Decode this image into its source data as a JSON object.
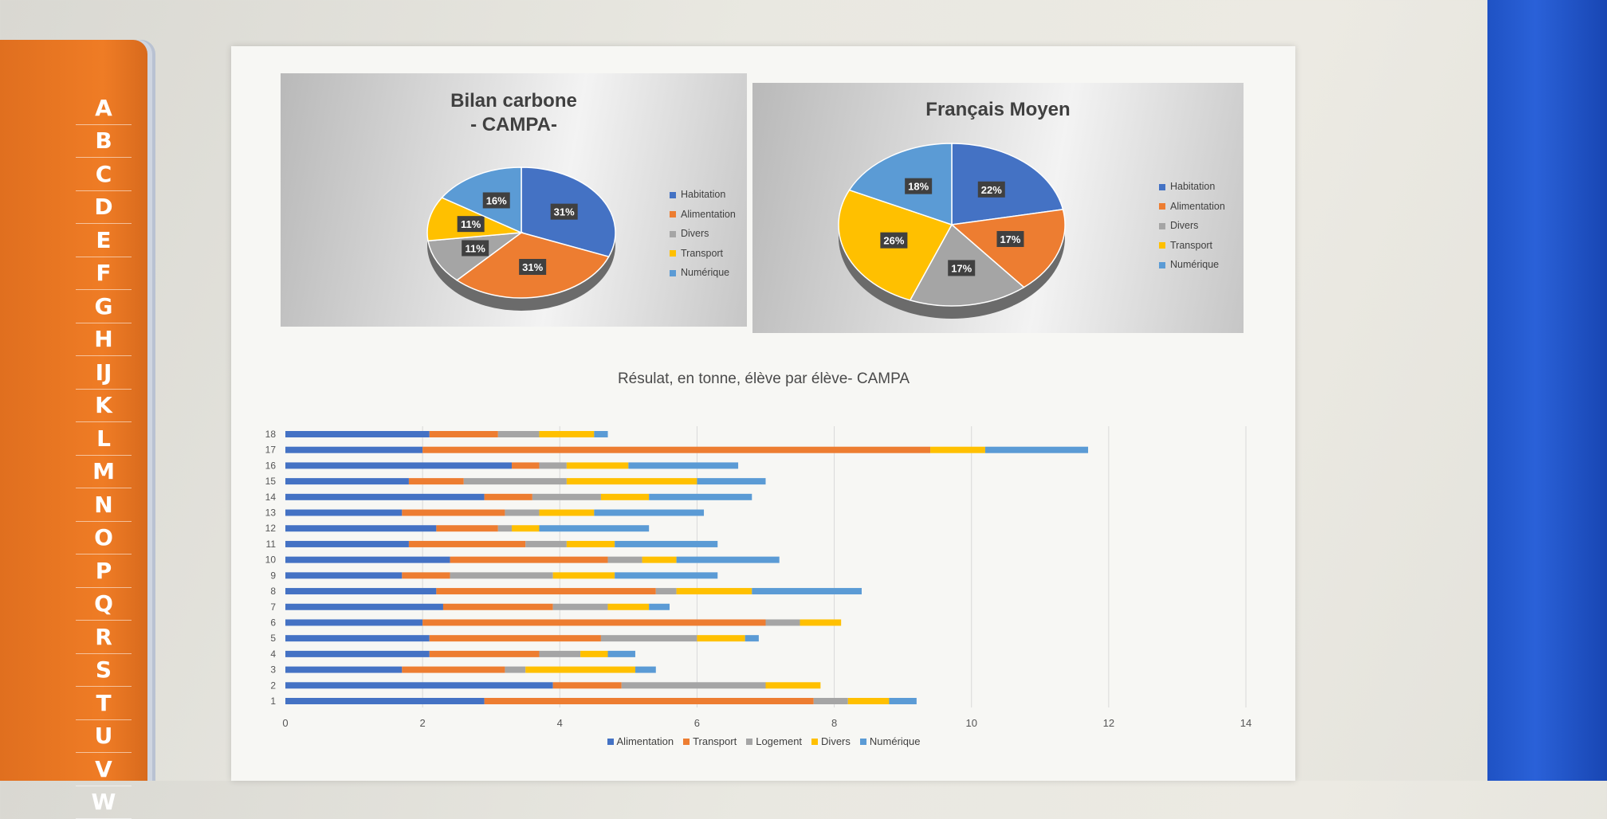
{
  "index_letters": [
    "A",
    "B",
    "C",
    "D",
    "E",
    "F",
    "G",
    "H",
    "IJ",
    "K",
    "L",
    "M",
    "N",
    "O",
    "P",
    "Q",
    "R",
    "S",
    "T",
    "U",
    "V",
    "W"
  ],
  "colors": {
    "habitation": "#4472c4",
    "alimentation": "#ed7d31",
    "divers": "#a5a5a5",
    "transport": "#ffc000",
    "numerique": "#5b9bd5",
    "logement": "#a5a5a5"
  },
  "chart_data": [
    {
      "type": "pie",
      "title": "Bilan carbone\n- CAMPA-",
      "labels": [
        "Habitation",
        "Alimentation",
        "Divers",
        "Transport",
        "Numérique"
      ],
      "values": [
        31,
        31,
        11,
        11,
        16
      ],
      "data_labels": [
        "31%",
        "31%",
        "11%",
        "11%",
        "16%"
      ],
      "legend": "right"
    },
    {
      "type": "pie",
      "title": "Français Moyen",
      "labels": [
        "Habitation",
        "Alimentation",
        "Divers",
        "Transport",
        "Numérique"
      ],
      "values": [
        22,
        17,
        17,
        26,
        18
      ],
      "data_labels": [
        "22%",
        "17%",
        "17%",
        "26%",
        "18%"
      ],
      "legend": "right"
    },
    {
      "type": "bar",
      "orientation": "horizontal-stacked",
      "title": "Résulat, en tonne, élève par élève- CAMPA",
      "categories": [
        "1",
        "2",
        "3",
        "4",
        "5",
        "6",
        "7",
        "8",
        "9",
        "10",
        "11",
        "12",
        "13",
        "14",
        "15",
        "16",
        "17",
        "18"
      ],
      "series": [
        {
          "name": "Alimentation",
          "values": [
            2.9,
            3.9,
            1.7,
            2.1,
            2.1,
            2.0,
            2.3,
            2.2,
            1.7,
            2.4,
            1.8,
            2.2,
            1.7,
            2.9,
            1.8,
            3.3,
            2.0,
            2.1
          ]
        },
        {
          "name": "Transport",
          "values": [
            4.8,
            1.0,
            1.5,
            1.6,
            2.5,
            5.0,
            1.6,
            3.2,
            0.7,
            2.3,
            1.7,
            0.9,
            1.5,
            0.7,
            0.8,
            0.4,
            7.4,
            1.0
          ]
        },
        {
          "name": "Logement",
          "values": [
            0.5,
            2.1,
            0.3,
            0.6,
            1.4,
            0.5,
            0.8,
            0.3,
            1.5,
            0.5,
            0.6,
            0.2,
            0.5,
            1.0,
            1.5,
            0.4,
            0.0,
            0.6
          ]
        },
        {
          "name": "Divers",
          "values": [
            0.6,
            0.8,
            1.6,
            0.4,
            0.7,
            0.6,
            0.6,
            1.1,
            0.9,
            0.5,
            0.7,
            0.4,
            0.8,
            0.7,
            1.9,
            0.9,
            0.8,
            0.8
          ]
        },
        {
          "name": "Numérique",
          "values": [
            0.4,
            0.0,
            0.3,
            0.4,
            0.2,
            0.0,
            0.3,
            1.6,
            1.5,
            1.5,
            1.5,
            1.6,
            1.6,
            1.5,
            1.0,
            1.6,
            1.5,
            0.2
          ]
        }
      ],
      "xlim": [
        0,
        14
      ],
      "xticks": [
        0,
        2,
        4,
        6,
        8,
        10,
        12,
        14
      ],
      "grid": true,
      "legend": "bottom"
    }
  ]
}
